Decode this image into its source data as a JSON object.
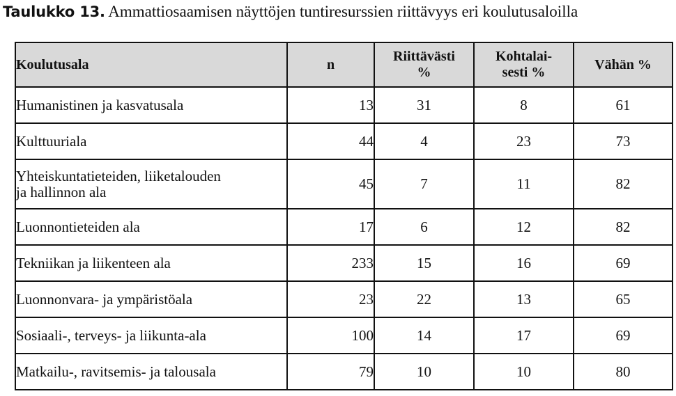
{
  "caption": {
    "label": "Taulukko 13.",
    "text": "Ammattiosaamisen näyttöjen tuntiresurssien riittävyys eri koulutusaloilla"
  },
  "table": {
    "headers": {
      "field": "Koulutusala",
      "n": "n",
      "sufficient": [
        "Riittävästi",
        "%"
      ],
      "moderate": [
        "Kohtalai-",
        "sesti %"
      ],
      "little": "Vähän %"
    },
    "rows": [
      {
        "field": [
          "Humanistinen ja kasvatusala"
        ],
        "n": "13",
        "sufficient": "31",
        "moderate": "8",
        "little": "61"
      },
      {
        "field": [
          "Kulttuuriala"
        ],
        "n": "44",
        "sufficient": "4",
        "moderate": "23",
        "little": "73"
      },
      {
        "field": [
          "Yhteiskuntatieteiden, liiketalouden",
          "ja hallinnon ala"
        ],
        "n": "45",
        "sufficient": "7",
        "moderate": "11",
        "little": "82"
      },
      {
        "field": [
          "Luonnontieteiden ala"
        ],
        "n": "17",
        "sufficient": "6",
        "moderate": "12",
        "little": "82"
      },
      {
        "field": [
          "Tekniikan ja liikenteen ala"
        ],
        "n": "233",
        "sufficient": "15",
        "moderate": "16",
        "little": "69"
      },
      {
        "field": [
          "Luonnonvara- ja ympäristöala"
        ],
        "n": "23",
        "sufficient": "22",
        "moderate": "13",
        "little": "65"
      },
      {
        "field": [
          "Sosiaali-, terveys- ja liikunta-ala"
        ],
        "n": "100",
        "sufficient": "14",
        "moderate": "17",
        "little": "69"
      },
      {
        "field": [
          "Matkailu-, ravitsemis- ja talousala"
        ],
        "n": "79",
        "sufficient": "10",
        "moderate": "10",
        "little": "80"
      }
    ]
  }
}
